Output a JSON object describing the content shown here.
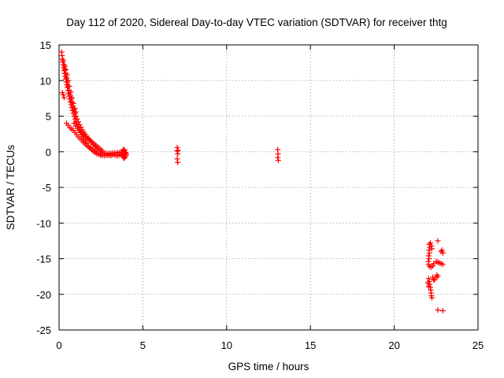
{
  "chart_data": {
    "type": "scatter",
    "title": "Day 112 of 2020, Sidereal Day-to-day VTEC variation (SDTVAR) for receiver thtg",
    "xlabel": "GPS time / hours",
    "ylabel": "SDTVAR / TECUs",
    "xlim": [
      0,
      25
    ],
    "ylim": [
      -25,
      15
    ],
    "xticks": [
      0,
      5,
      10,
      15,
      20,
      25
    ],
    "yticks": [
      15,
      10,
      5,
      0,
      -5,
      -10,
      -15,
      -20,
      -25
    ],
    "xtick_labels": [
      "0",
      "5",
      "10",
      "15",
      "20",
      "25"
    ],
    "ytick_labels": [
      "15",
      "10",
      "5",
      "0",
      "-5",
      "-10",
      "-15",
      "-20",
      "-25"
    ],
    "grid": true,
    "marker_color": "#ff0000",
    "marker": "+",
    "series": [
      {
        "name": "SDTVAR",
        "points": [
          [
            0.15,
            14.0
          ],
          [
            0.18,
            13.5
          ],
          [
            0.2,
            13.0
          ],
          [
            0.22,
            12.6
          ],
          [
            0.25,
            12.2
          ],
          [
            0.28,
            11.8
          ],
          [
            0.3,
            11.4
          ],
          [
            0.33,
            11.0
          ],
          [
            0.36,
            10.6
          ],
          [
            0.4,
            10.2
          ],
          [
            0.43,
            9.8
          ],
          [
            0.46,
            9.4
          ],
          [
            0.5,
            9.0
          ],
          [
            0.53,
            8.6
          ],
          [
            0.57,
            8.2
          ],
          [
            0.6,
            7.8
          ],
          [
            0.64,
            7.4
          ],
          [
            0.68,
            7.0
          ],
          [
            0.72,
            6.6
          ],
          [
            0.76,
            6.2
          ],
          [
            0.8,
            5.8
          ],
          [
            0.85,
            5.4
          ],
          [
            0.9,
            5.0
          ],
          [
            0.95,
            4.6
          ],
          [
            1.0,
            4.2
          ],
          [
            1.05,
            3.9
          ],
          [
            1.1,
            3.6
          ],
          [
            1.16,
            3.3
          ],
          [
            1.22,
            3.0
          ],
          [
            1.28,
            2.7
          ],
          [
            1.35,
            2.4
          ],
          [
            1.42,
            2.1
          ],
          [
            1.5,
            1.8
          ],
          [
            1.58,
            1.5
          ],
          [
            1.66,
            1.2
          ],
          [
            1.75,
            0.9
          ],
          [
            1.85,
            0.6
          ],
          [
            1.95,
            0.35
          ],
          [
            2.05,
            0.1
          ],
          [
            2.15,
            -0.1
          ],
          [
            2.25,
            -0.25
          ],
          [
            2.35,
            -0.35
          ],
          [
            2.45,
            -0.4
          ],
          [
            0.25,
            12.8
          ],
          [
            0.3,
            12.2
          ],
          [
            0.35,
            11.6
          ],
          [
            0.4,
            11.0
          ],
          [
            0.45,
            10.4
          ],
          [
            0.5,
            9.8
          ],
          [
            0.55,
            9.2
          ],
          [
            0.6,
            8.6
          ],
          [
            0.66,
            8.0
          ],
          [
            0.72,
            7.4
          ],
          [
            0.78,
            6.9
          ],
          [
            0.84,
            6.4
          ],
          [
            0.9,
            5.9
          ],
          [
            0.96,
            5.4
          ],
          [
            1.02,
            5.0
          ],
          [
            1.08,
            4.6
          ],
          [
            1.15,
            4.2
          ],
          [
            1.22,
            3.8
          ],
          [
            1.3,
            3.45
          ],
          [
            1.38,
            3.1
          ],
          [
            1.46,
            2.8
          ],
          [
            1.55,
            2.5
          ],
          [
            1.64,
            2.2
          ],
          [
            1.74,
            1.9
          ],
          [
            1.84,
            1.6
          ],
          [
            1.94,
            1.3
          ],
          [
            2.04,
            1.0
          ],
          [
            2.14,
            0.7
          ],
          [
            2.25,
            0.45
          ],
          [
            2.36,
            0.2
          ],
          [
            2.48,
            0.0
          ],
          [
            2.6,
            -0.15
          ],
          [
            0.35,
            12.0
          ],
          [
            0.4,
            11.5
          ],
          [
            0.48,
            10.8
          ],
          [
            0.55,
            10.0
          ],
          [
            0.62,
            9.2
          ],
          [
            0.7,
            8.4
          ],
          [
            0.78,
            7.6
          ],
          [
            0.86,
            6.8
          ],
          [
            0.94,
            6.1
          ],
          [
            1.0,
            5.6
          ],
          [
            0.2,
            8.3
          ],
          [
            0.25,
            8.0
          ],
          [
            0.3,
            7.6
          ],
          [
            0.45,
            4.0
          ],
          [
            0.55,
            3.7
          ],
          [
            0.65,
            3.4
          ],
          [
            0.75,
            3.2
          ],
          [
            0.85,
            3.0
          ],
          [
            0.95,
            2.7
          ],
          [
            1.05,
            2.4
          ],
          [
            1.15,
            2.1
          ],
          [
            1.25,
            1.85
          ],
          [
            1.35,
            1.6
          ],
          [
            1.45,
            1.35
          ],
          [
            1.55,
            1.1
          ],
          [
            1.65,
            0.9
          ],
          [
            1.75,
            0.7
          ],
          [
            1.85,
            0.5
          ],
          [
            1.95,
            0.3
          ],
          [
            2.05,
            0.15
          ],
          [
            2.15,
            0.0
          ],
          [
            0.9,
            4.0
          ],
          [
            1.0,
            3.6
          ],
          [
            1.1,
            3.3
          ],
          [
            1.2,
            3.0
          ],
          [
            1.3,
            2.75
          ],
          [
            1.4,
            2.5
          ],
          [
            1.5,
            2.3
          ],
          [
            1.6,
            2.1
          ],
          [
            1.7,
            1.9
          ],
          [
            1.8,
            1.7
          ],
          [
            1.9,
            1.5
          ],
          [
            2.0,
            1.3
          ],
          [
            2.1,
            1.1
          ],
          [
            2.2,
            0.9
          ],
          [
            2.3,
            0.7
          ],
          [
            2.4,
            0.5
          ],
          [
            2.5,
            0.3
          ],
          [
            2.6,
            0.1
          ],
          [
            2.5,
            -0.45
          ],
          [
            2.6,
            -0.5
          ],
          [
            2.7,
            -0.55
          ],
          [
            2.8,
            -0.5
          ],
          [
            2.9,
            -0.45
          ],
          [
            3.0,
            -0.5
          ],
          [
            3.1,
            -0.55
          ],
          [
            3.2,
            -0.45
          ],
          [
            3.3,
            -0.4
          ],
          [
            3.4,
            -0.5
          ],
          [
            3.5,
            -0.55
          ],
          [
            3.6,
            -0.45
          ],
          [
            3.7,
            -0.4
          ],
          [
            3.8,
            -0.6
          ],
          [
            3.85,
            -0.8
          ],
          [
            3.9,
            -0.9
          ],
          [
            3.95,
            -0.7
          ],
          [
            4.0,
            -0.5
          ],
          [
            2.7,
            -0.2
          ],
          [
            2.8,
            -0.25
          ],
          [
            2.9,
            -0.3
          ],
          [
            3.0,
            -0.2
          ],
          [
            3.1,
            -0.25
          ],
          [
            3.2,
            -0.2
          ],
          [
            3.3,
            -0.15
          ],
          [
            3.4,
            -0.2
          ],
          [
            3.5,
            -0.1
          ],
          [
            3.6,
            -0.15
          ],
          [
            3.7,
            -0.05
          ],
          [
            3.8,
            0.0
          ],
          [
            3.85,
            0.2
          ],
          [
            3.9,
            0.1
          ],
          [
            3.95,
            -0.1
          ],
          [
            4.0,
            -0.3
          ],
          [
            3.8,
            -0.3
          ],
          [
            3.82,
            0.3
          ],
          [
            3.88,
            -0.6
          ],
          [
            3.92,
            0.25
          ],
          [
            3.98,
            -0.2
          ],
          [
            7.05,
            0.6
          ],
          [
            7.05,
            0.1
          ],
          [
            7.08,
            -0.3
          ],
          [
            7.1,
            0.2
          ],
          [
            7.05,
            -1.0
          ],
          [
            7.08,
            -1.5
          ],
          [
            13.05,
            0.3
          ],
          [
            13.07,
            -0.3
          ],
          [
            13.05,
            -0.8
          ],
          [
            13.08,
            -1.2
          ],
          [
            22.1,
            -13.0
          ],
          [
            22.12,
            -13.4
          ],
          [
            22.08,
            -13.8
          ],
          [
            22.1,
            -14.2
          ],
          [
            22.05,
            -14.6
          ],
          [
            22.08,
            -15.0
          ],
          [
            22.03,
            -15.4
          ],
          [
            22.05,
            -15.8
          ],
          [
            22.1,
            -16.1
          ],
          [
            22.2,
            -16.2
          ],
          [
            22.3,
            -16.0
          ],
          [
            22.35,
            -15.7
          ],
          [
            22.15,
            -12.8
          ],
          [
            22.22,
            -13.2
          ],
          [
            22.25,
            -13.6
          ],
          [
            22.05,
            -17.8
          ],
          [
            22.1,
            -18.2
          ],
          [
            22.12,
            -18.6
          ],
          [
            22.15,
            -19.0
          ],
          [
            22.18,
            -19.4
          ],
          [
            22.2,
            -19.8
          ],
          [
            22.22,
            -20.2
          ],
          [
            22.25,
            -20.5
          ],
          [
            22.0,
            -18.4
          ],
          [
            22.05,
            -18.9
          ],
          [
            22.3,
            -17.6
          ],
          [
            22.35,
            -17.9
          ],
          [
            22.4,
            -18.0
          ],
          [
            22.5,
            -17.6
          ],
          [
            22.55,
            -17.3
          ],
          [
            22.6,
            -17.5
          ],
          [
            22.5,
            -15.4
          ],
          [
            22.6,
            -15.5
          ],
          [
            22.7,
            -15.6
          ],
          [
            22.8,
            -15.7
          ],
          [
            22.9,
            -15.8
          ],
          [
            22.8,
            -14.0
          ],
          [
            22.85,
            -13.8
          ],
          [
            22.9,
            -14.2
          ],
          [
            22.6,
            -12.5
          ],
          [
            22.6,
            -22.2
          ],
          [
            22.9,
            -22.3
          ]
        ]
      }
    ]
  }
}
